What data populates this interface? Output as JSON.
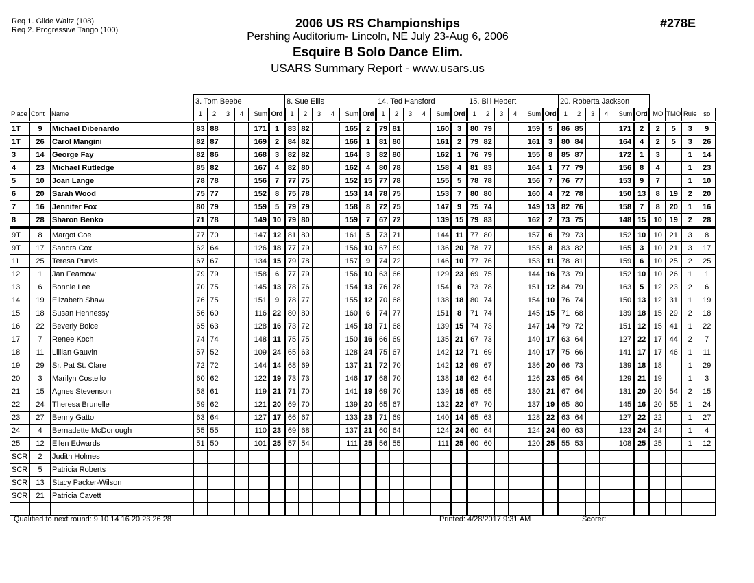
{
  "header": {
    "req1": "Req  1.  Glide Waltz (108)",
    "req2": "Req  2.  Progressive Tango (100)",
    "title": "2006 US RS Championships",
    "venue": "Pershing Auditorium- Lincoln, NE  July 23-Aug 6, 2006",
    "event": "Esquire B Solo Dance Elim.",
    "report": "USARS Summary Report - www.usars.us",
    "event_number": "#278E"
  },
  "judges": [
    "3.  Tom Beebe",
    "8.  Sue Ellis",
    "14.  Ted Hansford",
    "15.  Bill Hebert",
    "20.  Roberta Jackson"
  ],
  "columns": {
    "place": "Place",
    "cont": "Cont",
    "name": "Name",
    "judge_cols": [
      "1",
      "2",
      "3",
      "4",
      "Sum",
      "Ord"
    ],
    "mo": "MO",
    "tmo": "TMO",
    "rule": "Rule",
    "so": "so"
  },
  "rows": [
    {
      "place": "1T",
      "cont": "9",
      "name": "Michael Dibenardo",
      "bold": true,
      "scores": [
        [
          83,
          88,
          171,
          1
        ],
        [
          83,
          82,
          165,
          2
        ],
        [
          79,
          81,
          160,
          3
        ],
        [
          80,
          79,
          159,
          5
        ],
        [
          86,
          85,
          171,
          2
        ]
      ],
      "mo": "2",
      "tmo": "5",
      "rule": "3",
      "so": "9"
    },
    {
      "place": "1T",
      "cont": "26",
      "name": "Carol Mangini",
      "bold": true,
      "scores": [
        [
          82,
          87,
          169,
          2
        ],
        [
          84,
          82,
          166,
          1
        ],
        [
          81,
          80,
          161,
          2
        ],
        [
          79,
          82,
          161,
          3
        ],
        [
          80,
          84,
          164,
          4
        ]
      ],
      "mo": "2",
      "tmo": "5",
      "rule": "3",
      "so": "26"
    },
    {
      "place": "3",
      "cont": "14",
      "name": "George Fay",
      "bold": true,
      "scores": [
        [
          82,
          86,
          168,
          3
        ],
        [
          82,
          82,
          164,
          3
        ],
        [
          82,
          80,
          162,
          1
        ],
        [
          76,
          79,
          155,
          8
        ],
        [
          85,
          87,
          172,
          1
        ]
      ],
      "mo": "3",
      "tmo": "",
      "rule": "1",
      "so": "14"
    },
    {
      "place": "4",
      "cont": "23",
      "name": "Michael Rutledge",
      "bold": true,
      "scores": [
        [
          85,
          82,
          167,
          4
        ],
        [
          82,
          80,
          162,
          4
        ],
        [
          80,
          78,
          158,
          4
        ],
        [
          81,
          83,
          164,
          1
        ],
        [
          77,
          79,
          156,
          8
        ]
      ],
      "mo": "4",
      "tmo": "",
      "rule": "1",
      "so": "23"
    },
    {
      "place": "5",
      "cont": "10",
      "name": "Joan Lange",
      "bold": true,
      "scores": [
        [
          78,
          78,
          156,
          7
        ],
        [
          77,
          75,
          152,
          15
        ],
        [
          77,
          78,
          155,
          5
        ],
        [
          78,
          78,
          156,
          7
        ],
        [
          76,
          77,
          153,
          9
        ]
      ],
      "mo": "7",
      "tmo": "",
      "rule": "1",
      "so": "10"
    },
    {
      "place": "6",
      "cont": "20",
      "name": "Sarah Wood",
      "bold": true,
      "scores": [
        [
          75,
          77,
          152,
          8
        ],
        [
          75,
          78,
          153,
          14
        ],
        [
          78,
          75,
          153,
          7
        ],
        [
          80,
          80,
          160,
          4
        ],
        [
          72,
          78,
          150,
          13
        ]
      ],
      "mo": "8",
      "tmo": "19",
      "rule": "2",
      "so": "20"
    },
    {
      "place": "7",
      "cont": "16",
      "name": "Jennifer Fox",
      "bold": true,
      "scores": [
        [
          80,
          79,
          159,
          5
        ],
        [
          79,
          79,
          158,
          8
        ],
        [
          72,
          75,
          147,
          9
        ],
        [
          75,
          74,
          149,
          13
        ],
        [
          82,
          76,
          158,
          7
        ]
      ],
      "mo": "8",
      "tmo": "20",
      "rule": "1",
      "so": "16"
    },
    {
      "place": "8",
      "cont": "28",
      "name": "Sharon Benko",
      "bold": true,
      "scores": [
        [
          71,
          78,
          149,
          10
        ],
        [
          79,
          80,
          159,
          7
        ],
        [
          67,
          72,
          139,
          15
        ],
        [
          79,
          83,
          162,
          2
        ],
        [
          73,
          75,
          148,
          15
        ]
      ],
      "mo": "10",
      "tmo": "19",
      "rule": "2",
      "so": "28"
    },
    {
      "place": "9T",
      "cont": "8",
      "name": "Margot Coe",
      "scores": [
        [
          77,
          70,
          147,
          12
        ],
        [
          81,
          80,
          161,
          5
        ],
        [
          73,
          71,
          144,
          11
        ],
        [
          77,
          80,
          157,
          6
        ],
        [
          79,
          73,
          152,
          10
        ]
      ],
      "mo": "10",
      "tmo": "21",
      "rule": "3",
      "so": "8"
    },
    {
      "place": "9T",
      "cont": "17",
      "name": "Sandra Cox",
      "scores": [
        [
          62,
          64,
          126,
          18
        ],
        [
          77,
          79,
          156,
          10
        ],
        [
          67,
          69,
          136,
          20
        ],
        [
          78,
          77,
          155,
          8
        ],
        [
          83,
          82,
          165,
          3
        ]
      ],
      "mo": "10",
      "tmo": "21",
      "rule": "3",
      "so": "17"
    },
    {
      "place": "11",
      "cont": "25",
      "name": "Teresa Purvis",
      "scores": [
        [
          67,
          67,
          134,
          15
        ],
        [
          79,
          78,
          157,
          9
        ],
        [
          74,
          72,
          146,
          10
        ],
        [
          77,
          76,
          153,
          11
        ],
        [
          78,
          81,
          159,
          6
        ]
      ],
      "mo": "10",
      "tmo": "25",
      "rule": "2",
      "so": "25"
    },
    {
      "place": "12",
      "cont": "1",
      "name": "Jan Fearnow",
      "scores": [
        [
          79,
          79,
          158,
          6
        ],
        [
          77,
          79,
          156,
          10
        ],
        [
          63,
          66,
          129,
          23
        ],
        [
          69,
          75,
          144,
          16
        ],
        [
          73,
          79,
          152,
          10
        ]
      ],
      "mo": "10",
      "tmo": "26",
      "rule": "1",
      "so": "1"
    },
    {
      "place": "13",
      "cont": "6",
      "name": "Bonnie Lee",
      "scores": [
        [
          70,
          75,
          145,
          13
        ],
        [
          78,
          76,
          154,
          13
        ],
        [
          76,
          78,
          154,
          6
        ],
        [
          73,
          78,
          151,
          12
        ],
        [
          84,
          79,
          163,
          5
        ]
      ],
      "mo": "12",
      "tmo": "23",
      "rule": "2",
      "so": "6"
    },
    {
      "place": "14",
      "cont": "19",
      "name": "Elizabeth Shaw",
      "scores": [
        [
          76,
          75,
          151,
          9
        ],
        [
          78,
          77,
          155,
          12
        ],
        [
          70,
          68,
          138,
          18
        ],
        [
          80,
          74,
          154,
          10
        ],
        [
          76,
          74,
          150,
          13
        ]
      ],
      "mo": "12",
      "tmo": "31",
      "rule": "1",
      "so": "19"
    },
    {
      "place": "15",
      "cont": "18",
      "name": "Susan Hennessy",
      "scores": [
        [
          56,
          60,
          116,
          22
        ],
        [
          80,
          80,
          160,
          6
        ],
        [
          74,
          77,
          151,
          8
        ],
        [
          71,
          74,
          145,
          15
        ],
        [
          71,
          68,
          139,
          18
        ]
      ],
      "mo": "15",
      "tmo": "29",
      "rule": "2",
      "so": "18"
    },
    {
      "place": "16",
      "cont": "22",
      "name": "Beverly Boice",
      "scores": [
        [
          65,
          63,
          128,
          16
        ],
        [
          73,
          72,
          145,
          18
        ],
        [
          71,
          68,
          139,
          15
        ],
        [
          74,
          73,
          147,
          14
        ],
        [
          79,
          72,
          151,
          12
        ]
      ],
      "mo": "15",
      "tmo": "41",
      "rule": "1",
      "so": "22"
    },
    {
      "place": "17",
      "cont": "7",
      "name": "Renee Koch",
      "scores": [
        [
          74,
          74,
          148,
          11
        ],
        [
          75,
          75,
          150,
          16
        ],
        [
          66,
          69,
          135,
          21
        ],
        [
          67,
          73,
          140,
          17
        ],
        [
          63,
          64,
          127,
          22
        ]
      ],
      "mo": "17",
      "tmo": "44",
      "rule": "2",
      "so": "7"
    },
    {
      "place": "18",
      "cont": "11",
      "name": "Lillian Gauvin",
      "scores": [
        [
          57,
          52,
          109,
          24
        ],
        [
          65,
          63,
          128,
          24
        ],
        [
          75,
          67,
          142,
          12
        ],
        [
          71,
          69,
          140,
          17
        ],
        [
          75,
          66,
          141,
          17
        ]
      ],
      "mo": "17",
      "tmo": "46",
      "rule": "1",
      "so": "11"
    },
    {
      "place": "19",
      "cont": "29",
      "name": "Sr. Pat St. Clare",
      "scores": [
        [
          72,
          72,
          144,
          14
        ],
        [
          68,
          69,
          137,
          21
        ],
        [
          72,
          70,
          142,
          12
        ],
        [
          69,
          67,
          136,
          20
        ],
        [
          66,
          73,
          139,
          18
        ]
      ],
      "mo": "18",
      "tmo": "",
      "rule": "1",
      "so": "29"
    },
    {
      "place": "20",
      "cont": "3",
      "name": "Marilyn Costello",
      "scores": [
        [
          60,
          62,
          122,
          19
        ],
        [
          73,
          73,
          146,
          17
        ],
        [
          68,
          70,
          138,
          18
        ],
        [
          62,
          64,
          126,
          23
        ],
        [
          65,
          64,
          129,
          21
        ]
      ],
      "mo": "19",
      "tmo": "",
      "rule": "1",
      "so": "3"
    },
    {
      "place": "21",
      "cont": "15",
      "name": "Agnes Stevenson",
      "scores": [
        [
          58,
          61,
          119,
          21
        ],
        [
          71,
          70,
          141,
          19
        ],
        [
          69,
          70,
          139,
          15
        ],
        [
          65,
          65,
          130,
          21
        ],
        [
          67,
          64,
          131,
          20
        ]
      ],
      "mo": "20",
      "tmo": "54",
      "rule": "2",
      "so": "15"
    },
    {
      "place": "22",
      "cont": "24",
      "name": "Theresa Brunelle",
      "scores": [
        [
          59,
          62,
          121,
          20
        ],
        [
          69,
          70,
          139,
          20
        ],
        [
          65,
          67,
          132,
          22
        ],
        [
          67,
          70,
          137,
          19
        ],
        [
          65,
          80,
          145,
          16
        ]
      ],
      "mo": "20",
      "tmo": "55",
      "rule": "1",
      "so": "24"
    },
    {
      "place": "23",
      "cont": "27",
      "name": "Benny Gatto",
      "scores": [
        [
          63,
          64,
          127,
          17
        ],
        [
          66,
          67,
          133,
          23
        ],
        [
          71,
          69,
          140,
          14
        ],
        [
          65,
          63,
          128,
          22
        ],
        [
          63,
          64,
          127,
          22
        ]
      ],
      "mo": "22",
      "tmo": "",
      "rule": "1",
      "so": "27"
    },
    {
      "place": "24",
      "cont": "4",
      "name": "Bernadette McDonough",
      "scores": [
        [
          55,
          55,
          110,
          23
        ],
        [
          69,
          68,
          137,
          21
        ],
        [
          60,
          64,
          124,
          24
        ],
        [
          60,
          64,
          124,
          24
        ],
        [
          60,
          63,
          123,
          24
        ]
      ],
      "mo": "24",
      "tmo": "",
      "rule": "1",
      "so": "4"
    },
    {
      "place": "25",
      "cont": "12",
      "name": "Ellen Edwards",
      "scores": [
        [
          51,
          50,
          101,
          25
        ],
        [
          57,
          54,
          111,
          25
        ],
        [
          56,
          55,
          111,
          25
        ],
        [
          60,
          60,
          120,
          25
        ],
        [
          55,
          53,
          108,
          25
        ]
      ],
      "mo": "25",
      "tmo": "",
      "rule": "1",
      "so": "12"
    },
    {
      "place": "SCR",
      "cont": "2",
      "name": "Judith Holmes"
    },
    {
      "place": "SCR",
      "cont": "5",
      "name": "Patricia Roberts"
    },
    {
      "place": "SCR",
      "cont": "13",
      "name": "Stacy Packer-Wilson"
    },
    {
      "place": "SCR",
      "cont": "21",
      "name": "Patricia Cavett"
    },
    {
      "place": "",
      "cont": "",
      "name": ""
    }
  ],
  "footer": {
    "qualified": "Qualified to next round:   9 10 14 16 20 23 26 28",
    "printed": "Printed:  4/28/2017  9:31 AM",
    "scorer": "Scorer:"
  }
}
